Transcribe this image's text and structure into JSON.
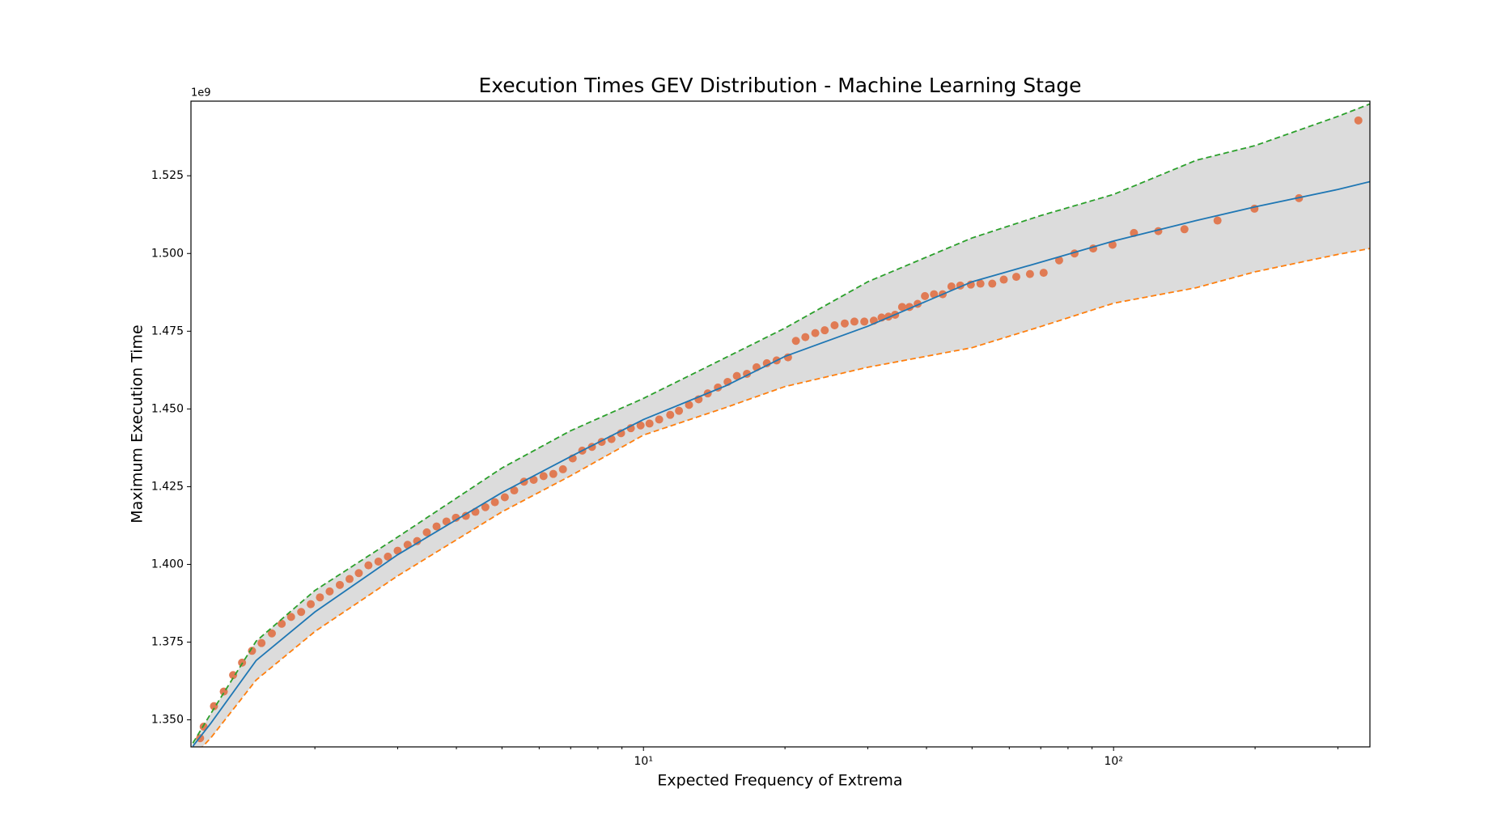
{
  "chart_data": {
    "type": "line",
    "title": "Execution Times GEV Distribution - Machine Learning Stage",
    "xlabel": "Expected Frequency of Extrema",
    "ylabel": "Maximum Execution Time",
    "y_offset_label": "1e9",
    "xscale": "log",
    "xlim": [
      1.09,
      351
    ],
    "ylim": [
      1.3413,
      1.549
    ],
    "xticks": [
      {
        "value": 10,
        "label": "10¹"
      },
      {
        "value": 100,
        "label": "10²"
      }
    ],
    "xminorticks": [
      2,
      3,
      4,
      5,
      6,
      7,
      8,
      9,
      20,
      30,
      40,
      50,
      60,
      70,
      80,
      90,
      200,
      300
    ],
    "yticks": [
      {
        "value": 1.35,
        "label": "1.350"
      },
      1.375,
      {
        "value": 1.4,
        "label": "1.400"
      },
      1.425,
      {
        "value": 1.45,
        "label": "1.450"
      },
      1.475,
      {
        "value": 1.5,
        "label": "1.500"
      },
      1.525
    ],
    "x": [
      1.1,
      1.2,
      1.5,
      2,
      3,
      5,
      7,
      10,
      15,
      20,
      30,
      50,
      70,
      100,
      150,
      200,
      300,
      351
    ],
    "band_color": "#dcdcdc",
    "series": [
      {
        "color": "#1f77b4",
        "dashed": false,
        "values": [
          1.3415,
          1.3488,
          1.3691,
          1.3847,
          1.4031,
          1.4231,
          1.4347,
          1.4466,
          1.4575,
          1.4669,
          1.4766,
          1.4909,
          1.4972,
          1.504,
          1.5106,
          1.515,
          1.5206,
          1.5231
        ]
      },
      {
        "color": "#2ca02c",
        "dashed": true,
        "values": [
          1.3425,
          1.3519,
          1.3753,
          1.3916,
          1.4088,
          1.431,
          1.443,
          1.4534,
          1.4666,
          1.476,
          1.4909,
          1.505,
          1.5122,
          1.519,
          1.53,
          1.5347,
          1.5441,
          1.5481
        ]
      },
      {
        "color": "#ff7f0e",
        "dashed": true,
        "values": [
          1.3381,
          1.3441,
          1.3628,
          1.3784,
          1.3963,
          1.4169,
          1.4285,
          1.4416,
          1.4505,
          1.4572,
          1.4634,
          1.4697,
          1.4765,
          1.484,
          1.489,
          1.4941,
          1.4997,
          1.5016
        ]
      }
    ],
    "points": {
      "color": "#e07b54",
      "x": [
        331.7,
        248,
        199.4,
        166.4,
        141.5,
        124.5,
        110.5,
        99.5,
        90.5,
        82.6,
        76.6,
        71.0,
        66.4,
        62.1,
        58.4,
        55.2,
        52.1,
        49.7,
        47.2,
        45.2,
        43.3,
        41.5,
        39.7,
        38.3,
        36.8,
        35.5,
        34.3,
        33.2,
        32.1,
        30.9,
        29.5,
        28.1,
        26.8,
        25.5,
        24.3,
        23.2,
        22.1,
        21.1,
        20.3,
        19.2,
        18.3,
        17.4,
        16.6,
        15.8,
        15.1,
        14.4,
        13.7,
        13.1,
        12.5,
        11.9,
        11.4,
        10.8,
        10.3,
        9.86,
        9.4,
        8.96,
        8.55,
        8.15,
        7.77,
        7.41,
        7.07,
        6.74,
        6.43,
        6.13,
        5.84,
        5.57,
        5.31,
        5.07,
        4.83,
        4.61,
        4.39,
        4.19,
        3.99,
        3.81,
        3.63,
        3.46,
        3.3,
        3.15,
        3.0,
        2.86,
        2.73,
        2.6,
        2.48,
        2.37,
        2.26,
        2.15,
        2.05,
        1.96,
        1.87,
        1.78,
        1.7,
        1.62,
        1.54,
        1.47,
        1.4,
        1.34,
        1.28,
        1.22,
        1.16,
        1.14
      ],
      "y": [
        1.5428,
        1.5178,
        1.5144,
        1.5106,
        1.5078,
        1.5072,
        1.5066,
        1.5028,
        1.5016,
        1.5,
        1.4978,
        1.4938,
        1.4934,
        1.4925,
        1.4916,
        1.4903,
        1.4903,
        1.49,
        1.4897,
        1.4894,
        1.4869,
        1.4869,
        1.4863,
        1.4838,
        1.4828,
        1.4828,
        1.4803,
        1.4797,
        1.4794,
        1.4784,
        1.4781,
        1.4781,
        1.4775,
        1.4769,
        1.4753,
        1.4744,
        1.4731,
        1.4719,
        1.4666,
        1.4656,
        1.4647,
        1.4634,
        1.4613,
        1.4606,
        1.4587,
        1.4569,
        1.455,
        1.4531,
        1.4513,
        1.4494,
        1.4481,
        1.4466,
        1.4453,
        1.4447,
        1.4438,
        1.4422,
        1.4403,
        1.4394,
        1.4378,
        1.4366,
        1.4341,
        1.4306,
        1.4291,
        1.4284,
        1.4272,
        1.4266,
        1.4238,
        1.4216,
        1.42,
        1.4184,
        1.4169,
        1.4156,
        1.415,
        1.4138,
        1.4122,
        1.4103,
        1.4075,
        1.4063,
        1.4044,
        1.4025,
        1.4009,
        1.3997,
        1.3972,
        1.3953,
        1.3934,
        1.3913,
        1.3894,
        1.3872,
        1.3847,
        1.3831,
        1.3809,
        1.3778,
        1.3747,
        1.3722,
        1.3684,
        1.3644,
        1.3591,
        1.3544,
        1.3478,
        1.3441
      ]
    }
  }
}
